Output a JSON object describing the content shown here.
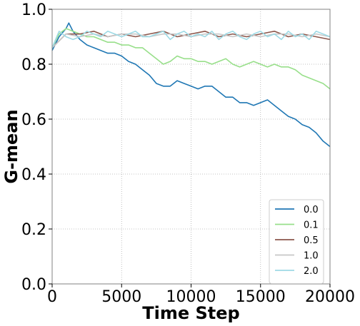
{
  "chart_data": {
    "type": "line",
    "title": "",
    "xlabel": "Time Step",
    "ylabel": "G-mean",
    "xlim": [
      0,
      20000
    ],
    "ylim": [
      0.0,
      1.0
    ],
    "xticks": [
      "0",
      "5000",
      "10000",
      "15000",
      "20000"
    ],
    "yticks": [
      "0.0",
      "0.2",
      "0.4",
      "0.6",
      "0.8",
      "1.0"
    ],
    "grid": true,
    "legend_position": "lower-right",
    "series": [
      {
        "name": "0.0",
        "color": "#1f77b4",
        "x": [
          0,
          500,
          1000,
          1200,
          1500,
          2000,
          2500,
          3000,
          3500,
          4000,
          4500,
          5000,
          5500,
          6000,
          6500,
          7000,
          7500,
          8000,
          8500,
          9000,
          9500,
          10000,
          10500,
          11000,
          11500,
          12000,
          12500,
          13000,
          13500,
          14000,
          14500,
          15000,
          15500,
          16000,
          16500,
          17000,
          17500,
          18000,
          18500,
          19000,
          19500,
          20000
        ],
        "y": [
          0.85,
          0.9,
          0.93,
          0.95,
          0.92,
          0.89,
          0.87,
          0.86,
          0.85,
          0.84,
          0.84,
          0.83,
          0.81,
          0.8,
          0.78,
          0.76,
          0.73,
          0.72,
          0.72,
          0.74,
          0.73,
          0.72,
          0.71,
          0.72,
          0.72,
          0.7,
          0.68,
          0.68,
          0.66,
          0.66,
          0.65,
          0.66,
          0.67,
          0.65,
          0.63,
          0.61,
          0.6,
          0.58,
          0.57,
          0.55,
          0.52,
          0.5
        ]
      },
      {
        "name": "0.1",
        "color": "#98df8a",
        "x": [
          0,
          500,
          1000,
          1500,
          2000,
          2500,
          3000,
          3500,
          4000,
          4500,
          5000,
          5500,
          6000,
          6500,
          7000,
          7500,
          8000,
          8500,
          9000,
          9500,
          10000,
          10500,
          11000,
          11500,
          12000,
          12500,
          13000,
          13500,
          14000,
          14500,
          15000,
          15500,
          16000,
          16500,
          17000,
          17500,
          18000,
          18500,
          19000,
          19500,
          20000
        ],
        "y": [
          0.86,
          0.91,
          0.93,
          0.92,
          0.91,
          0.9,
          0.9,
          0.89,
          0.88,
          0.88,
          0.87,
          0.87,
          0.86,
          0.86,
          0.84,
          0.82,
          0.8,
          0.81,
          0.83,
          0.82,
          0.82,
          0.81,
          0.81,
          0.8,
          0.81,
          0.82,
          0.8,
          0.79,
          0.8,
          0.81,
          0.8,
          0.79,
          0.8,
          0.79,
          0.79,
          0.78,
          0.76,
          0.75,
          0.74,
          0.73,
          0.71
        ]
      },
      {
        "name": "0.5",
        "color": "#8c564b",
        "x": [
          0,
          1000,
          2000,
          3000,
          4000,
          5000,
          6000,
          7000,
          8000,
          9000,
          10000,
          11000,
          12000,
          13000,
          14000,
          15000,
          16000,
          17000,
          18000,
          19000,
          20000
        ],
        "y": [
          0.86,
          0.91,
          0.91,
          0.92,
          0.9,
          0.91,
          0.9,
          0.91,
          0.92,
          0.9,
          0.91,
          0.92,
          0.9,
          0.91,
          0.9,
          0.91,
          0.92,
          0.9,
          0.91,
          0.9,
          0.89
        ]
      },
      {
        "name": "1.0",
        "color": "#c7c7c7",
        "x": [
          0,
          1000,
          2000,
          3000,
          4000,
          5000,
          6000,
          7000,
          8000,
          9000,
          10000,
          11000,
          12000,
          13000,
          14000,
          15000,
          16000,
          17000,
          18000,
          19000,
          20000
        ],
        "y": [
          0.86,
          0.91,
          0.9,
          0.91,
          0.9,
          0.91,
          0.91,
          0.9,
          0.91,
          0.91,
          0.9,
          0.91,
          0.91,
          0.9,
          0.91,
          0.9,
          0.91,
          0.91,
          0.9,
          0.91,
          0.9
        ]
      },
      {
        "name": "2.0",
        "color": "#9edae5",
        "x": [
          0,
          500,
          1000,
          1500,
          2000,
          2500,
          3000,
          3500,
          4000,
          4500,
          5000,
          5500,
          6000,
          6500,
          7000,
          7500,
          8000,
          8500,
          9000,
          9500,
          10000,
          10500,
          11000,
          11500,
          12000,
          12500,
          13000,
          13500,
          14000,
          14500,
          15000,
          15500,
          16000,
          16500,
          17000,
          17500,
          18000,
          18500,
          19000,
          19500,
          20000
        ],
        "y": [
          0.86,
          0.92,
          0.9,
          0.89,
          0.9,
          0.92,
          0.91,
          0.9,
          0.92,
          0.91,
          0.9,
          0.91,
          0.92,
          0.9,
          0.9,
          0.91,
          0.92,
          0.89,
          0.91,
          0.92,
          0.9,
          0.91,
          0.9,
          0.92,
          0.89,
          0.91,
          0.92,
          0.9,
          0.89,
          0.91,
          0.92,
          0.9,
          0.91,
          0.89,
          0.92,
          0.9,
          0.91,
          0.89,
          0.92,
          0.91,
          0.9
        ]
      }
    ]
  }
}
